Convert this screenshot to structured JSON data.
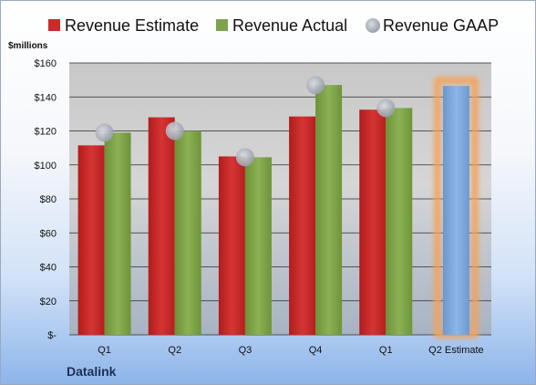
{
  "chart_data": {
    "type": "bar",
    "categories": [
      "Q1",
      "Q2",
      "Q3",
      "Q4",
      "Q1",
      "Q2 Estimate"
    ],
    "series": [
      {
        "name": "Revenue Estimate",
        "color": "#cc2a2a",
        "values": [
          111.5,
          128,
          105,
          128.5,
          132.5,
          null
        ]
      },
      {
        "name": "Revenue Actual",
        "color": "#7fa34a",
        "values": [
          119,
          120,
          104.5,
          147,
          133.5,
          null
        ]
      },
      {
        "name": "Revenue GAAP",
        "color": "#a9afba",
        "marker": "circle",
        "values": [
          119,
          120,
          104.5,
          147,
          133.5,
          null
        ]
      }
    ],
    "estimate_bar": {
      "category": "Q2 Estimate",
      "value": 146.5,
      "color": "#78a6dc",
      "highlight_color": "#f3a35c"
    },
    "ylabel": "$millions",
    "ylim": [
      0,
      160
    ],
    "ytick_labels": [
      "$-",
      "$20",
      "$40",
      "$60",
      "$80",
      "$100",
      "$120",
      "$140",
      "$160"
    ],
    "grid": true,
    "legend_position": "top",
    "source_label": "Datalink"
  }
}
